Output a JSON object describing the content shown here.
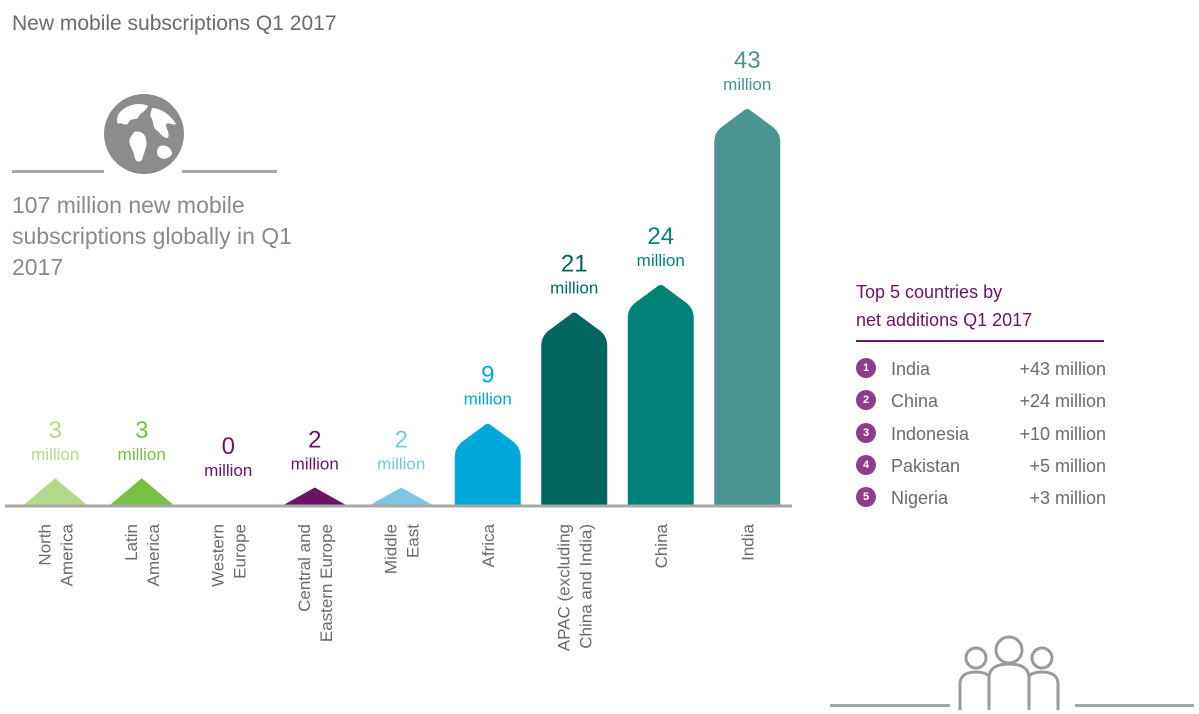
{
  "title": "New mobile subscriptions Q1 2017",
  "headline": "107 million new mobile subscriptions globally in Q1 2017",
  "icons": {
    "globe": "globe-icon",
    "people": "people-group-icon"
  },
  "chart_data": {
    "type": "bar",
    "title": "",
    "xlabel": "",
    "ylabel": "",
    "categories": [
      [
        "North",
        "America"
      ],
      [
        "Latin",
        "America"
      ],
      [
        "Western",
        "Europe"
      ],
      [
        "Central and",
        "Eastern Europe"
      ],
      [
        "Middle",
        "East"
      ],
      [
        "Africa"
      ],
      [
        "APAC (excluding",
        "China and India)"
      ],
      [
        "China"
      ],
      [
        "India"
      ]
    ],
    "values": [
      3,
      3,
      0,
      2,
      2,
      9,
      21,
      24,
      43
    ],
    "unit_label": "million",
    "colors": [
      "#b5d98a",
      "#78c043",
      "#6b1466",
      "#6b1466",
      "#7ec5e2",
      "#00a9d9",
      "#00665e",
      "#008279",
      "#4a9591"
    ],
    "ylim": [
      0,
      43
    ],
    "grid": false,
    "legend": "none"
  },
  "top5": {
    "title_lines": [
      "Top 5 countries by",
      "net additions Q1 2017"
    ],
    "rows": [
      {
        "rank": "1",
        "country": "India",
        "value": "+43 million"
      },
      {
        "rank": "2",
        "country": "China",
        "value": "+24 million"
      },
      {
        "rank": "3",
        "country": "Indonesia",
        "value": "+10 million"
      },
      {
        "rank": "4",
        "country": "Pakistan",
        "value": "+5 million"
      },
      {
        "rank": "5",
        "country": "Nigeria",
        "value": "+3 million"
      }
    ],
    "rank_color": "#8d3d8a",
    "title_color": "#6b1466"
  }
}
